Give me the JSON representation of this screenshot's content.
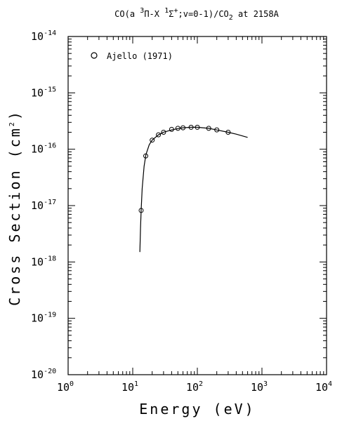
{
  "chart_data": {
    "type": "line",
    "title_parts": [
      "CO(a ",
      "3",
      "Π-X ",
      "1",
      "Σ",
      "+",
      ";v=0-1)/CO",
      "2",
      " at 2158A"
    ],
    "xlabel": "Energy (eV)",
    "ylabel": "Cross Section (cm",
    "ylabel_sup": "2",
    "ylabel_close": ")",
    "x_scale": "log",
    "y_scale": "log",
    "xlim": [
      1,
      10000
    ],
    "ylim": [
      1e-20,
      1e-14
    ],
    "x_ticks": [
      {
        "base": "10",
        "exp": "0",
        "value": 1
      },
      {
        "base": "10",
        "exp": "1",
        "value": 10
      },
      {
        "base": "10",
        "exp": "2",
        "value": 100
      },
      {
        "base": "10",
        "exp": "3",
        "value": 1000
      },
      {
        "base": "10",
        "exp": "4",
        "value": 10000
      }
    ],
    "y_ticks": [
      {
        "base": "10",
        "exp": "-14",
        "value": 1e-14
      },
      {
        "base": "10",
        "exp": "-15",
        "value": 1e-15
      },
      {
        "base": "10",
        "exp": "-16",
        "value": 1e-16
      },
      {
        "base": "10",
        "exp": "-17",
        "value": 1e-17
      },
      {
        "base": "10",
        "exp": "-18",
        "value": 1e-18
      },
      {
        "base": "10",
        "exp": "-19",
        "value": 1e-19
      },
      {
        "base": "10",
        "exp": "-20",
        "value": 1e-20
      }
    ],
    "legend_position": "top-left",
    "series": [
      {
        "name": "Ajello (1971)",
        "kind": "points",
        "marker": "open-circle",
        "x": [
          13.5,
          15.9,
          20,
          25,
          30,
          40,
          50,
          60,
          80,
          100,
          150,
          200,
          300
        ],
        "y": [
          8.2e-18,
          7.6e-17,
          1.45e-16,
          1.8e-16,
          2e-16,
          2.25e-16,
          2.35e-16,
          2.4e-16,
          2.45e-16,
          2.45e-16,
          2.35e-16,
          2.2e-16,
          2e-16
        ]
      },
      {
        "kind": "line",
        "x": [
          12.9,
          13.2,
          13.5,
          14,
          15,
          16,
          18,
          20,
          25,
          30,
          40,
          50,
          60,
          80,
          100,
          150,
          200,
          300,
          400,
          600
        ],
        "y": [
          1.5e-18,
          4e-18,
          8.2e-18,
          2e-17,
          5e-17,
          8e-17,
          1.2e-16,
          1.45e-16,
          1.8e-16,
          2e-16,
          2.2e-16,
          2.32e-16,
          2.4e-16,
          2.45e-16,
          2.45e-16,
          2.35e-16,
          2.2e-16,
          2e-16,
          1.85e-16,
          1.62e-16
        ]
      }
    ]
  }
}
